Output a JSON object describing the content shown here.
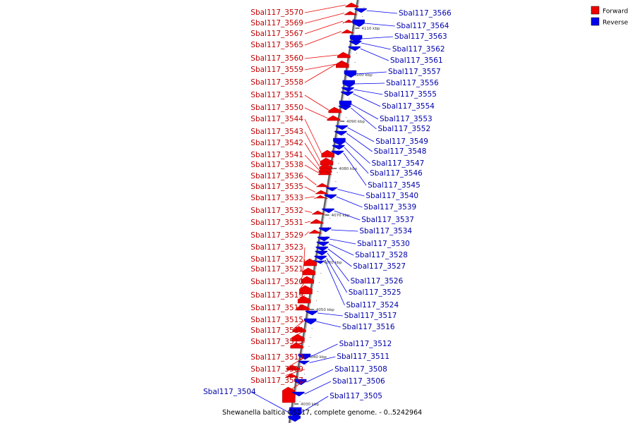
{
  "caption": "Shewanella baltica OS117, complete genome. - 0..5242964",
  "legend": [
    {
      "label": "Forward",
      "color": "#ee0000"
    },
    {
      "label": "Reverse",
      "color": "#0000ee"
    }
  ],
  "ticks": [
    "4110 kbp",
    "4100 kbp",
    "4090 kbp",
    "4080 kbp",
    "4070 kbp",
    "4060 kbp",
    "4050 kbp",
    "4040 kbp",
    "4030 kbp"
  ],
  "forward_genes": [
    "Sbal117_3570",
    "Sbal117_3569",
    "Sbal117_3567",
    "Sbal117_3565",
    "Sbal117_3560",
    "Sbal117_3559",
    "Sbal117_3558",
    "Sbal117_3551",
    "Sbal117_3550",
    "Sbal117_3544",
    "Sbal117_3543",
    "Sbal117_3542",
    "Sbal117_3541",
    "Sbal117_3538",
    "Sbal117_3536",
    "Sbal117_3535",
    "Sbal117_3533",
    "Sbal117_3532",
    "Sbal117_3531",
    "Sbal117_3529",
    "Sbal117_3523",
    "Sbal117_3522",
    "Sbal117_3521",
    "Sbal117_3520",
    "Sbal117_3519",
    "Sbal117_3518",
    "Sbal117_3515",
    "Sbal117_3514",
    "Sbal117_3513",
    "Sbal117_3510",
    "Sbal117_3509",
    "Sbal117_3507"
  ],
  "reverse_genes": [
    "Sbal117_3566",
    "Sbal117_3564",
    "Sbal117_3563",
    "Sbal117_3562",
    "Sbal117_3561",
    "Sbal117_3557",
    "Sbal117_3556",
    "Sbal117_3555",
    "Sbal117_3554",
    "Sbal117_3553",
    "Sbal117_3552",
    "Sbal117_3549",
    "Sbal117_3548",
    "Sbal117_3547",
    "Sbal117_3546",
    "Sbal117_3545",
    "Sbal117_3540",
    "Sbal117_3539",
    "Sbal117_3537",
    "Sbal117_3534",
    "Sbal117_3530",
    "Sbal117_3528",
    "Sbal117_3527",
    "Sbal117_3526",
    "Sbal117_3525",
    "Sbal117_3524",
    "Sbal117_3517",
    "Sbal117_3516",
    "Sbal117_3512",
    "Sbal117_3511",
    "Sbal117_3508",
    "Sbal117_3506",
    "Sbal117_3505",
    "Sbal117_3504"
  ]
}
